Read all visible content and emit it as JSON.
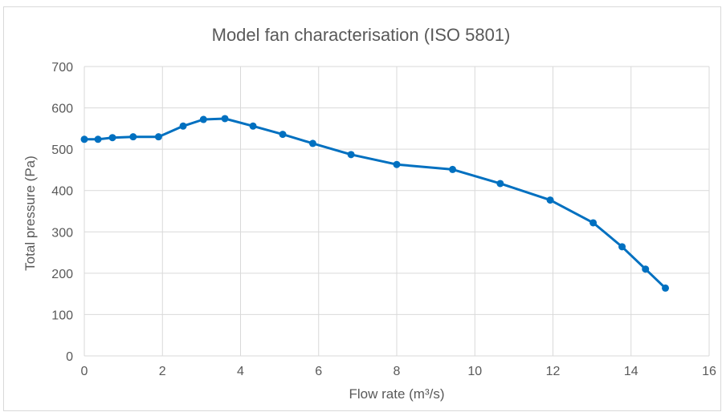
{
  "chart_data": {
    "type": "line",
    "title": "Model fan characterisation (ISO 5801)",
    "xlabel": "Flow rate (m³/s)",
    "ylabel": "Total pressure (Pa)",
    "xlim": [
      0,
      16
    ],
    "ylim": [
      0,
      700
    ],
    "x_ticks": [
      0,
      2,
      4,
      6,
      8,
      10,
      12,
      14,
      16
    ],
    "y_ticks": [
      0,
      100,
      200,
      300,
      400,
      500,
      600,
      700
    ],
    "grid": true,
    "legend": "none",
    "series": [
      {
        "color": "#0070c0",
        "x": [
          0,
          0.35,
          0.72,
          1.25,
          1.9,
          2.53,
          3.05,
          3.6,
          4.32,
          5.08,
          5.85,
          6.83,
          8.0,
          9.43,
          10.65,
          11.93,
          13.03,
          13.77,
          14.37,
          14.88
        ],
        "y": [
          524,
          524,
          528,
          530,
          530,
          556,
          572,
          574,
          556,
          536,
          514,
          487,
          463,
          451,
          417,
          377,
          322,
          264,
          210,
          164
        ]
      }
    ]
  }
}
